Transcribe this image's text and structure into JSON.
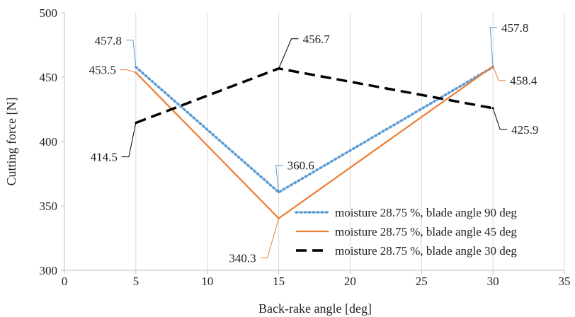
{
  "chart_data": {
    "type": "line",
    "xlabel": "Back-rake angle [deg]",
    "ylabel": "Cutting force [N]",
    "xlim": [
      0,
      35
    ],
    "ylim": [
      300,
      500
    ],
    "xticks": [
      0,
      5,
      10,
      15,
      20,
      25,
      30,
      35
    ],
    "yticks": [
      300,
      350,
      400,
      450,
      500
    ],
    "grid": "vertical",
    "legend_position": "bottom-right",
    "series": [
      {
        "name": "moisture 28.75 %, blade angle 90 deg",
        "color": "#5b9bd5",
        "style": "dotted",
        "x": [
          5,
          15,
          30
        ],
        "y": [
          457.8,
          360.6,
          457.8
        ],
        "labels": [
          "457.8",
          "360.6",
          "457.8"
        ]
      },
      {
        "name": "moisture 28.75 %, blade angle 45 deg",
        "color": "#ed7d31",
        "style": "solid",
        "x": [
          5,
          15,
          30
        ],
        "y": [
          453.5,
          340.3,
          458.4
        ],
        "labels": [
          "453.5",
          "340.3",
          "458.4"
        ]
      },
      {
        "name": "moisture 28.75 %, blade angle 30 deg",
        "color": "#000000",
        "style": "dashed",
        "x": [
          5,
          15,
          30
        ],
        "y": [
          414.5,
          456.7,
          425.9
        ],
        "labels": [
          "414.5",
          "456.7",
          "425.9"
        ]
      }
    ]
  }
}
